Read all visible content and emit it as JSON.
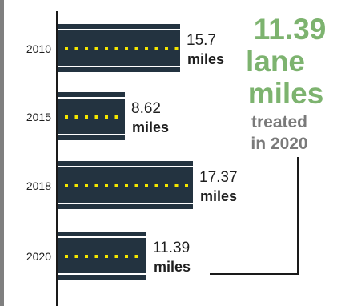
{
  "callout": {
    "value": "11.39",
    "line2": "lane",
    "line3": "miles",
    "line4": "treated",
    "line5": "in 2020"
  },
  "colors": {
    "road": "#233340",
    "stripe": "#ffffff",
    "dash": "#f3e600",
    "callout_green": "#7db36f",
    "callout_gray": "#7a7a7a",
    "axis": "#1a1a1a",
    "text": "#1f1f1f"
  },
  "chart_data": {
    "type": "bar",
    "orientation": "horizontal",
    "categories": [
      "2010",
      "2015",
      "2018",
      "2020"
    ],
    "values": [
      15.7,
      8.62,
      17.37,
      11.39
    ],
    "value_labels": [
      "15.7",
      "8.62",
      "17.37",
      "11.39"
    ],
    "unit_label": "miles",
    "title": "",
    "xlabel": "",
    "ylabel": "",
    "xlim": [
      0,
      17.37
    ],
    "grid": false,
    "legend": "none"
  }
}
